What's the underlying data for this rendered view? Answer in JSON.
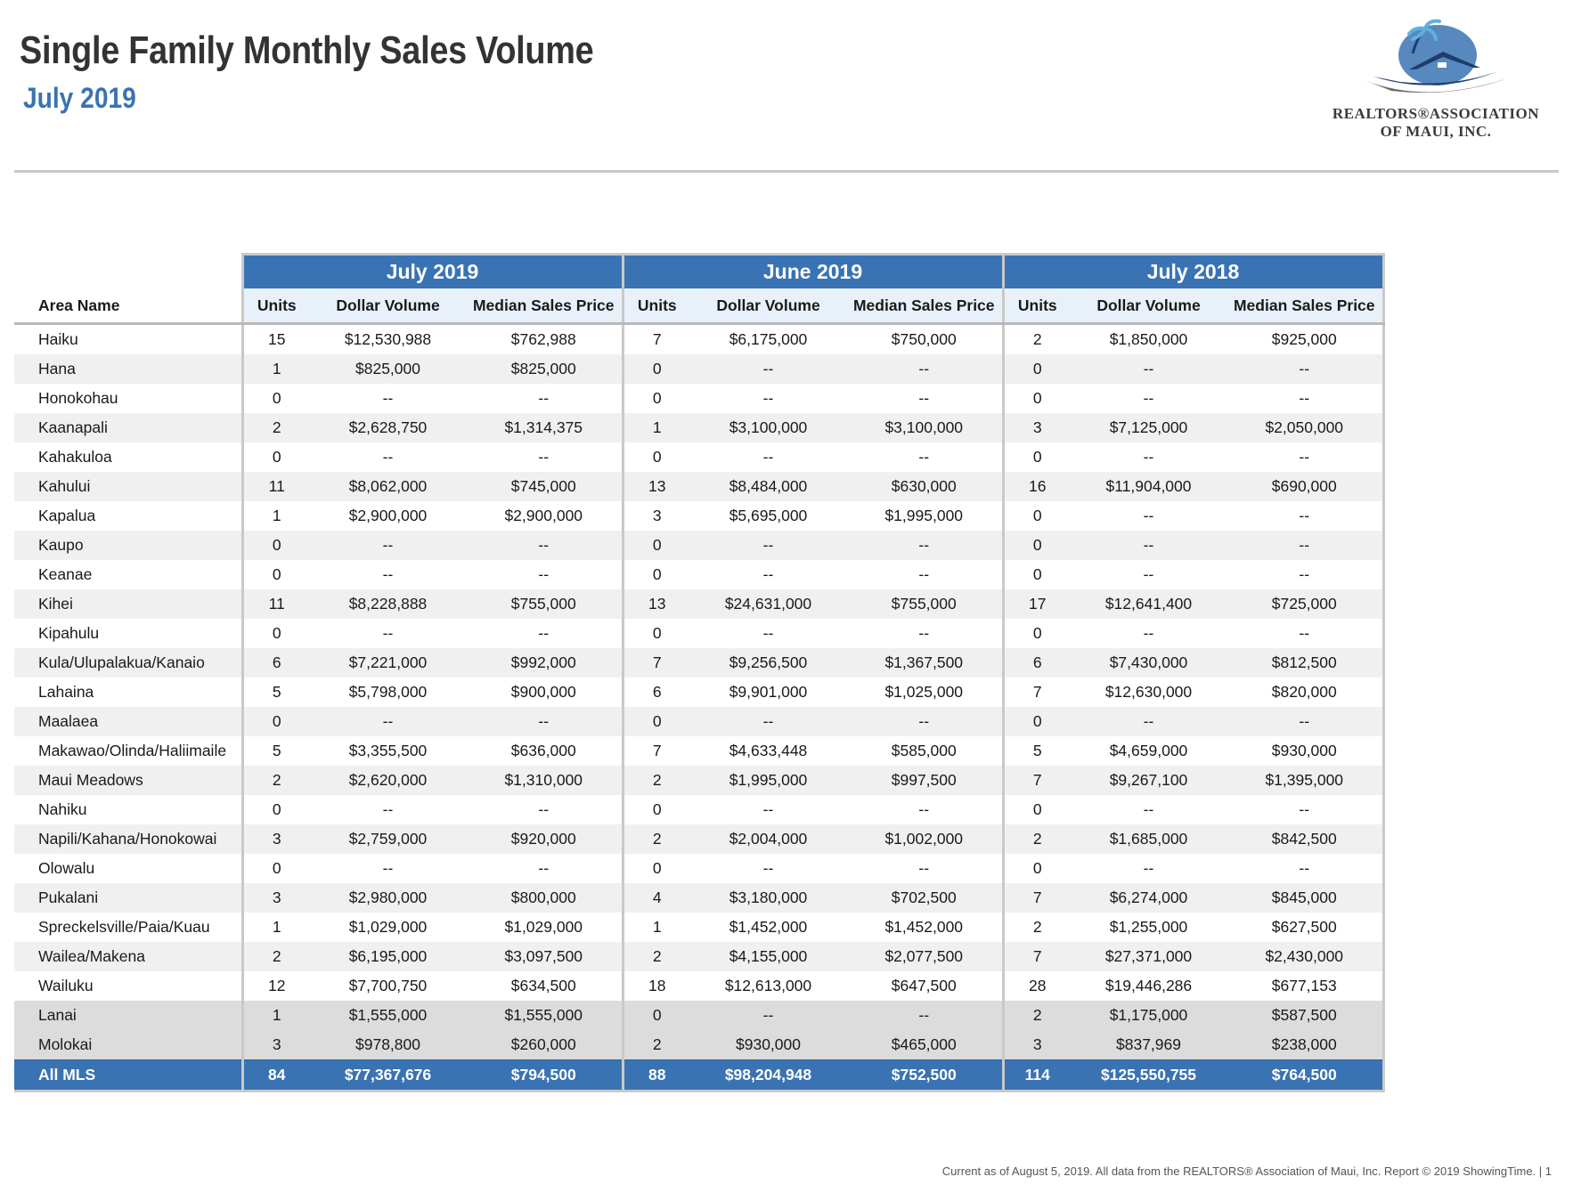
{
  "header": {
    "title": "Single Family Monthly Sales Volume",
    "subtitle": "July 2019"
  },
  "logo": {
    "line1": "REALTORS®ASSOCIATION",
    "line2": "OF MAUI, INC.",
    "colors": {
      "sky": "#3a73b3",
      "house": "#1f3c6e",
      "palm": "#5fb0e0"
    }
  },
  "table": {
    "area_header": "Area Name",
    "groups": [
      "July 2019",
      "June 2019",
      "July 2018"
    ],
    "columns": [
      "Units",
      "Dollar Volume",
      "Median Sales Price"
    ],
    "rows": [
      {
        "area": "Haiku",
        "c": [
          "15",
          "$12,530,988",
          "$762,988",
          "7",
          "$6,175,000",
          "$750,000",
          "2",
          "$1,850,000",
          "$925,000"
        ]
      },
      {
        "area": "Hana",
        "c": [
          "1",
          "$825,000",
          "$825,000",
          "0",
          "--",
          "--",
          "0",
          "--",
          "--"
        ]
      },
      {
        "area": "Honokohau",
        "c": [
          "0",
          "--",
          "--",
          "0",
          "--",
          "--",
          "0",
          "--",
          "--"
        ]
      },
      {
        "area": "Kaanapali",
        "c": [
          "2",
          "$2,628,750",
          "$1,314,375",
          "1",
          "$3,100,000",
          "$3,100,000",
          "3",
          "$7,125,000",
          "$2,050,000"
        ]
      },
      {
        "area": "Kahakuloa",
        "c": [
          "0",
          "--",
          "--",
          "0",
          "--",
          "--",
          "0",
          "--",
          "--"
        ]
      },
      {
        "area": "Kahului",
        "c": [
          "11",
          "$8,062,000",
          "$745,000",
          "13",
          "$8,484,000",
          "$630,000",
          "16",
          "$11,904,000",
          "$690,000"
        ]
      },
      {
        "area": "Kapalua",
        "c": [
          "1",
          "$2,900,000",
          "$2,900,000",
          "3",
          "$5,695,000",
          "$1,995,000",
          "0",
          "--",
          "--"
        ]
      },
      {
        "area": "Kaupo",
        "c": [
          "0",
          "--",
          "--",
          "0",
          "--",
          "--",
          "0",
          "--",
          "--"
        ]
      },
      {
        "area": "Keanae",
        "c": [
          "0",
          "--",
          "--",
          "0",
          "--",
          "--",
          "0",
          "--",
          "--"
        ]
      },
      {
        "area": "Kihei",
        "c": [
          "11",
          "$8,228,888",
          "$755,000",
          "13",
          "$24,631,000",
          "$755,000",
          "17",
          "$12,641,400",
          "$725,000"
        ]
      },
      {
        "area": "Kipahulu",
        "c": [
          "0",
          "--",
          "--",
          "0",
          "--",
          "--",
          "0",
          "--",
          "--"
        ]
      },
      {
        "area": "Kula/Ulupalakua/Kanaio",
        "c": [
          "6",
          "$7,221,000",
          "$992,000",
          "7",
          "$9,256,500",
          "$1,367,500",
          "6",
          "$7,430,000",
          "$812,500"
        ]
      },
      {
        "area": "Lahaina",
        "c": [
          "5",
          "$5,798,000",
          "$900,000",
          "6",
          "$9,901,000",
          "$1,025,000",
          "7",
          "$12,630,000",
          "$820,000"
        ]
      },
      {
        "area": "Maalaea",
        "c": [
          "0",
          "--",
          "--",
          "0",
          "--",
          "--",
          "0",
          "--",
          "--"
        ]
      },
      {
        "area": "Makawao/Olinda/Haliimaile",
        "c": [
          "5",
          "$3,355,500",
          "$636,000",
          "7",
          "$4,633,448",
          "$585,000",
          "5",
          "$4,659,000",
          "$930,000"
        ]
      },
      {
        "area": "Maui Meadows",
        "c": [
          "2",
          "$2,620,000",
          "$1,310,000",
          "2",
          "$1,995,000",
          "$997,500",
          "7",
          "$9,267,100",
          "$1,395,000"
        ]
      },
      {
        "area": "Nahiku",
        "c": [
          "0",
          "--",
          "--",
          "0",
          "--",
          "--",
          "0",
          "--",
          "--"
        ]
      },
      {
        "area": "Napili/Kahana/Honokowai",
        "c": [
          "3",
          "$2,759,000",
          "$920,000",
          "2",
          "$2,004,000",
          "$1,002,000",
          "2",
          "$1,685,000",
          "$842,500"
        ]
      },
      {
        "area": "Olowalu",
        "c": [
          "0",
          "--",
          "--",
          "0",
          "--",
          "--",
          "0",
          "--",
          "--"
        ]
      },
      {
        "area": "Pukalani",
        "c": [
          "3",
          "$2,980,000",
          "$800,000",
          "4",
          "$3,180,000",
          "$702,500",
          "7",
          "$6,274,000",
          "$845,000"
        ]
      },
      {
        "area": "Spreckelsville/Paia/Kuau",
        "c": [
          "1",
          "$1,029,000",
          "$1,029,000",
          "1",
          "$1,452,000",
          "$1,452,000",
          "2",
          "$1,255,000",
          "$627,500"
        ]
      },
      {
        "area": "Wailea/Makena",
        "c": [
          "2",
          "$6,195,000",
          "$3,097,500",
          "2",
          "$4,155,000",
          "$2,077,500",
          "7",
          "$27,371,000",
          "$2,430,000"
        ]
      },
      {
        "area": "Wailuku",
        "c": [
          "12",
          "$7,700,750",
          "$634,500",
          "18",
          "$12,613,000",
          "$647,500",
          "28",
          "$19,446,286",
          "$677,153"
        ]
      },
      {
        "area": "Lanai",
        "c": [
          "1",
          "$1,555,000",
          "$1,555,000",
          "0",
          "--",
          "--",
          "2",
          "$1,175,000",
          "$587,500"
        ],
        "island": true
      },
      {
        "area": "Molokai",
        "c": [
          "3",
          "$978,800",
          "$260,000",
          "2",
          "$930,000",
          "$465,000",
          "3",
          "$837,969",
          "$238,000"
        ],
        "island": true
      }
    ],
    "total": {
      "area": "All MLS",
      "c": [
        "84",
        "$77,367,676",
        "$794,500",
        "88",
        "$98,204,948",
        "$752,500",
        "114",
        "$125,550,755",
        "$764,500"
      ]
    }
  },
  "footer": {
    "text": "Current as of August 5, 2019. All data from the REALTORS® Association of Maui, Inc. Report © 2019 ShowingTime.  |  1"
  }
}
